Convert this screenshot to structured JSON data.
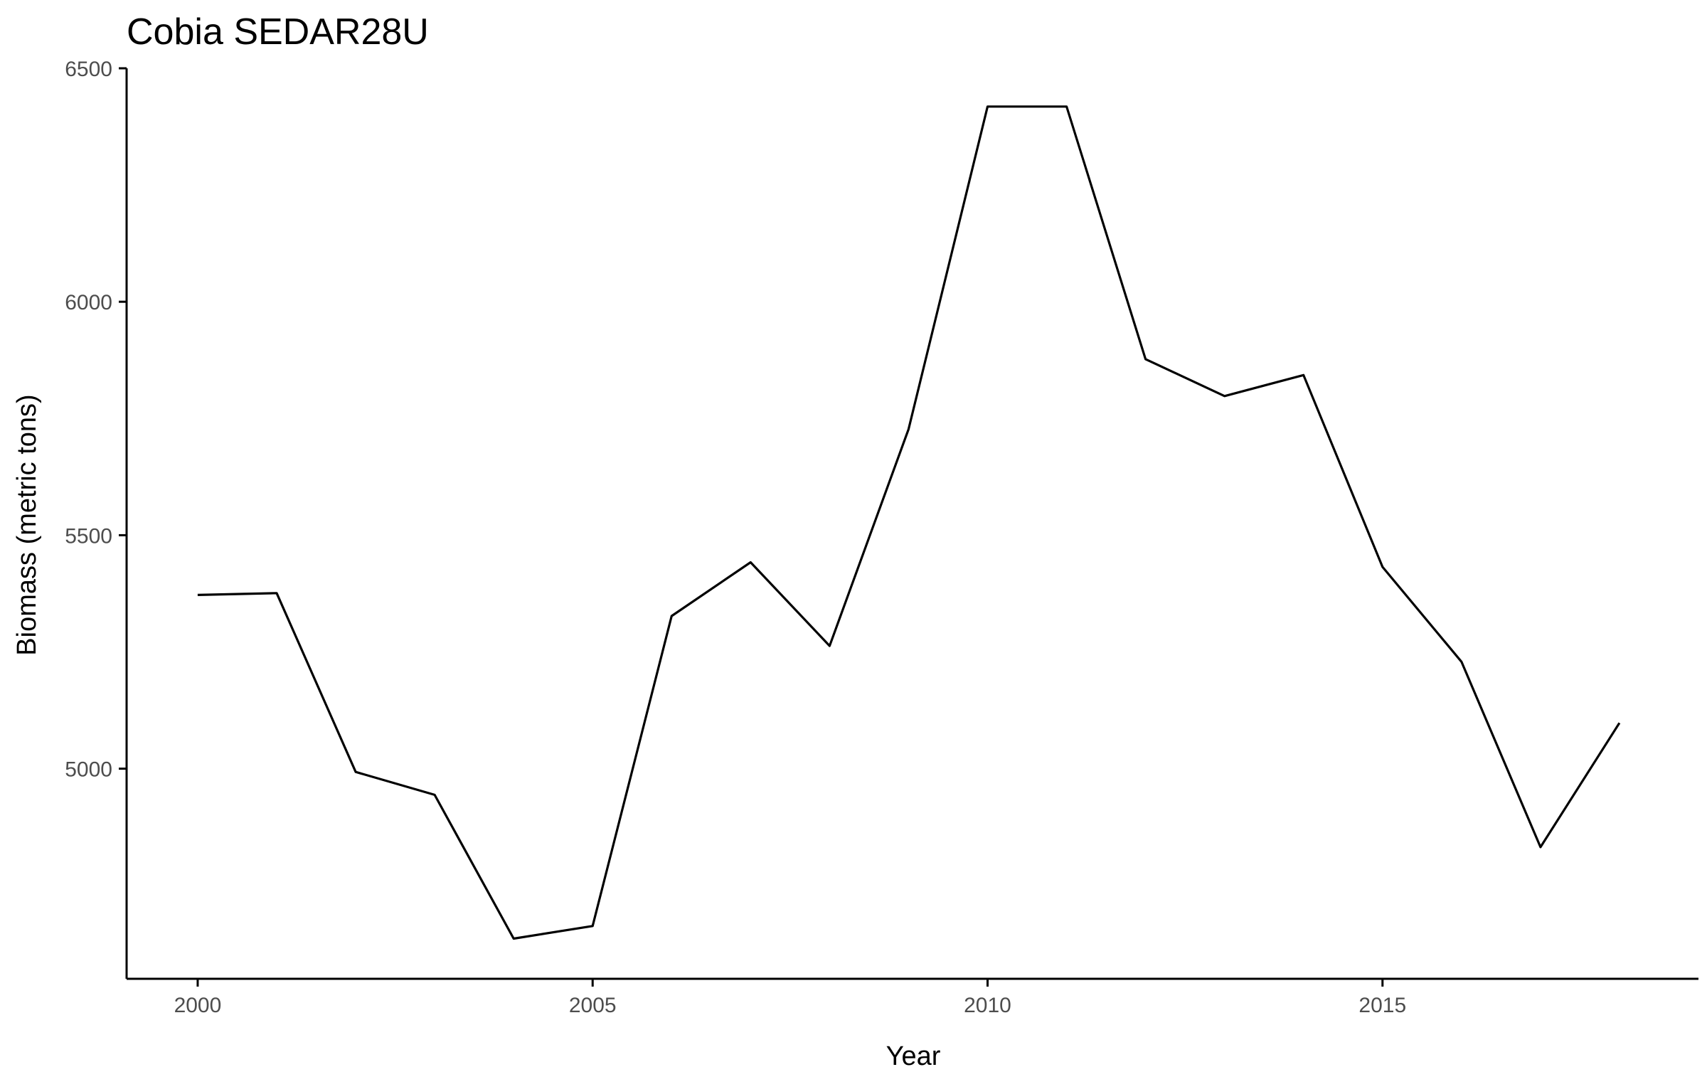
{
  "chart_data": {
    "type": "line",
    "title": "Cobia SEDAR28U",
    "xlabel": "Year",
    "ylabel": "Biomass (metric tons)",
    "xlim": [
      1999.1,
      2019.0
    ],
    "ylim": [
      4550,
      6500
    ],
    "x_ticks": [
      2000,
      2005,
      2010,
      2015
    ],
    "y_ticks": [
      5000,
      5500,
      6000,
      6500
    ],
    "grid": false,
    "legend": "none",
    "line_color": "#000000",
    "series": [
      {
        "x": [
          2000,
          2001,
          2002,
          2003,
          2004,
          2005,
          2006,
          2007,
          2008,
          2009,
          2010,
          2011,
          2012,
          2013,
          2014,
          2015,
          2016,
          2017,
          2018
        ],
        "values": [
          5372,
          5376,
          4993,
          4944,
          4636,
          4663,
          5327,
          5442,
          5263,
          5727,
          6418,
          6418,
          5877,
          5798,
          5843,
          5432,
          5229,
          4832,
          5098
        ]
      }
    ]
  }
}
